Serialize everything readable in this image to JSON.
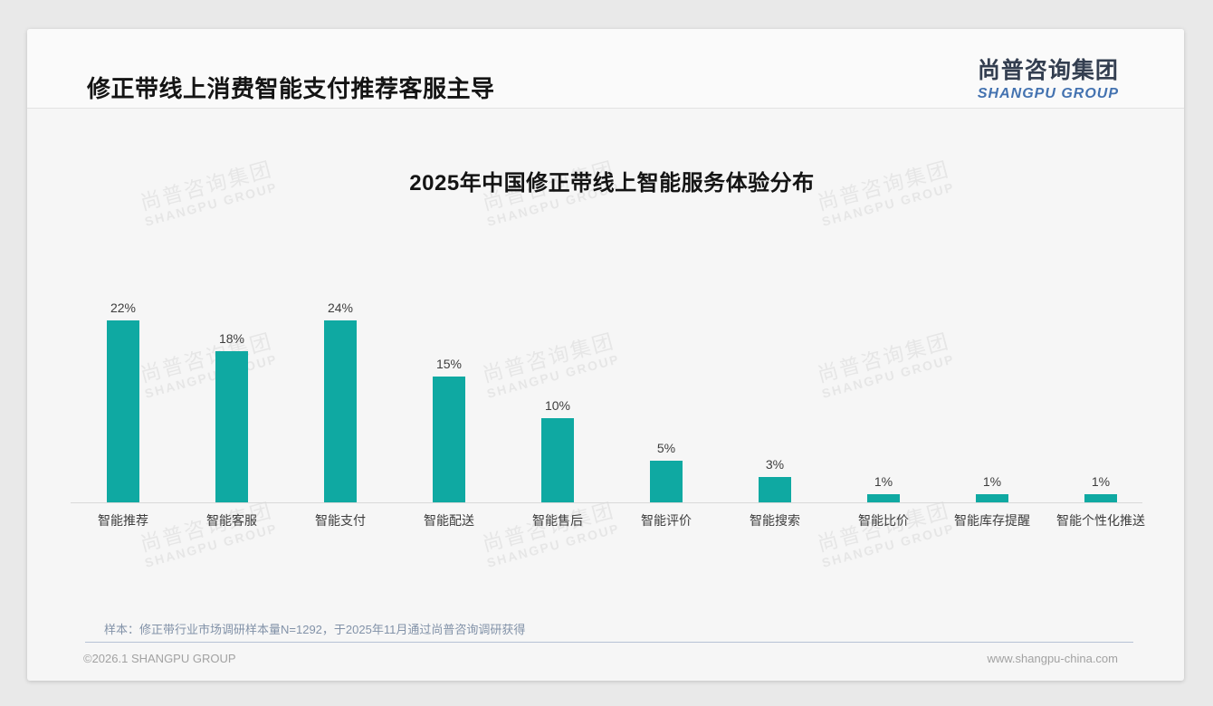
{
  "header": {
    "slide_title": "修正带线上消费智能支付推荐客服主导",
    "logo": {
      "zh": "尚普咨询集团",
      "en": "SHANGPU GROUP",
      "zh_color": "#333e50",
      "en_color": "#4372b0"
    }
  },
  "watermark": {
    "line1": "尚普咨询集团",
    "line2": "SHANGPU GROUP"
  },
  "chart_data": {
    "type": "bar",
    "title": "2025年中国修正带线上智能服务体验分布",
    "categories": [
      "智能推荐",
      "智能客服",
      "智能支付",
      "智能配送",
      "智能售后",
      "智能评价",
      "智能搜索",
      "智能比价",
      "智能库存提醒",
      "智能个性化推送"
    ],
    "values": [
      22,
      18,
      24,
      15,
      10,
      5,
      3,
      1,
      1,
      1
    ],
    "data_labels": [
      "22%",
      "18%",
      "24%",
      "15%",
      "10%",
      "5%",
      "3%",
      "1%",
      "1%",
      "1%"
    ],
    "unit": "%",
    "bar_color": "#0fa9a2",
    "ylim": [
      0,
      24
    ],
    "grid": false,
    "legend": "none",
    "xlabel": "",
    "ylabel": ""
  },
  "footer": {
    "note": "样本：修正带行业市场调研样本量N=1292，于2025年11月通过尚普咨询调研获得",
    "copyright": "©2026.1 SHANGPU GROUP",
    "website": "www.shangpu-china.com"
  }
}
